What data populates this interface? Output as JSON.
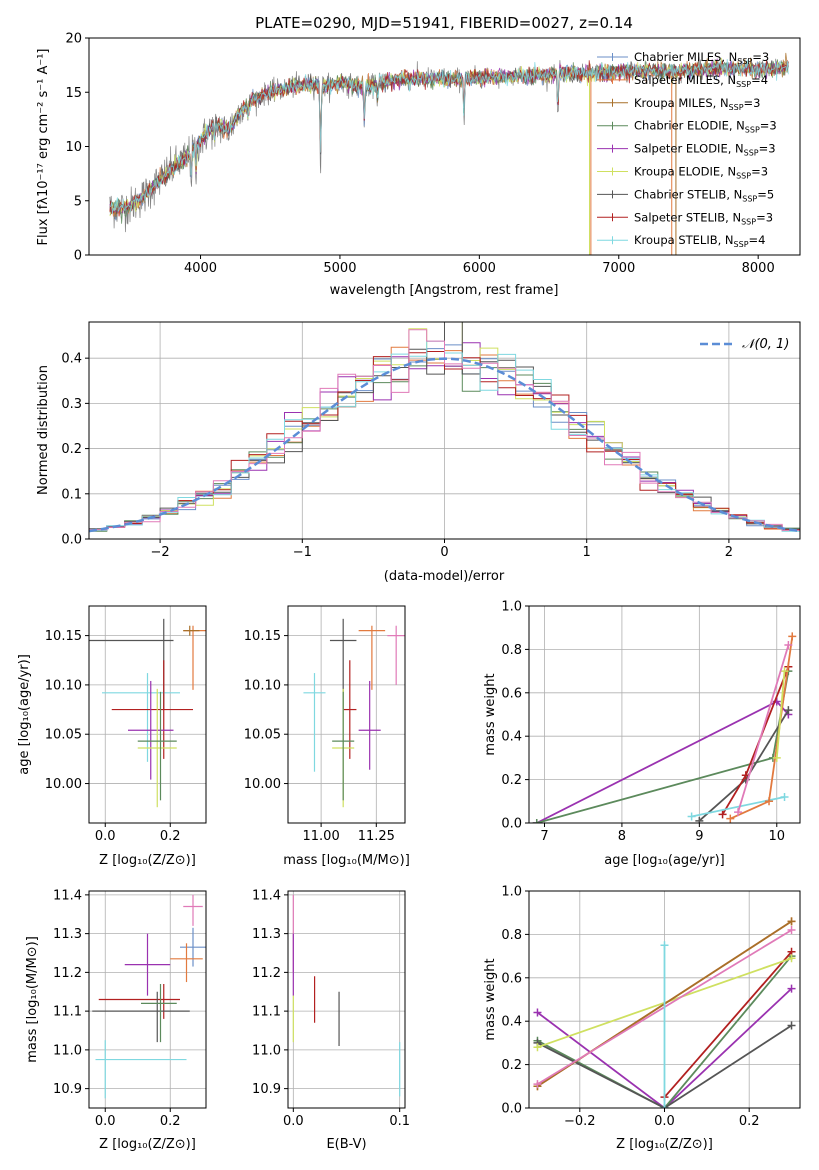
{
  "chart_data": [
    {
      "id": "spectrum",
      "type": "line",
      "title": "PLATE=0290, MJD=51941, FIBERID=0027, z=0.14",
      "xlabel": "wavelength [Angstrom, rest frame]",
      "ylabel": "Flux [fλ10⁻¹⁷ erg cm⁻² s⁻¹ A⁻¹]",
      "xlim": [
        3200,
        8300
      ],
      "ylim": [
        0,
        20
      ],
      "xticks": [
        4000,
        5000,
        6000,
        7000,
        8000
      ],
      "yticks": [
        0,
        5,
        10,
        15,
        20
      ],
      "grid": false,
      "legend_position": "top-right",
      "data_color": "#808080",
      "spectrum_shape": {
        "x": [
          3350,
          3500,
          3600,
          3700,
          3800,
          3900,
          4000,
          4100,
          4200,
          4300,
          4400,
          4500,
          4600,
          4700,
          4800,
          4900,
          5000,
          5100,
          5200,
          5300,
          5400,
          5500,
          5700,
          5900,
          6100,
          6300,
          6500,
          6600,
          6800,
          7000,
          7200,
          7400,
          7600,
          7800,
          8000,
          8200
        ],
        "y": [
          4.2,
          4.5,
          5.5,
          6.8,
          8,
          9,
          10.5,
          12,
          11.5,
          13.5,
          14.5,
          15,
          15.3,
          15.6,
          15.7,
          15.6,
          15.9,
          15.6,
          15.5,
          15.9,
          16.1,
          16.2,
          16.3,
          16.2,
          16.4,
          16.5,
          16.6,
          16.8,
          16.7,
          16.9,
          17.0,
          16.9,
          17.1,
          17.2,
          17.1,
          17.3
        ]
      },
      "series": [
        {
          "name": "Chabrier MILES, Nₛₛₚ=3",
          "label_main": "Chabrier MILES, N",
          "label_sub": "SSP",
          "label_tail": "=3",
          "color": "#6b8fc7"
        },
        {
          "name": "Salpeter MILES, Nₛₛₚ=4",
          "label_main": "Salpeter MILES, N",
          "label_sub": "SSP",
          "label_tail": "=4",
          "color": "#e27a3f"
        },
        {
          "name": "Kroupa MILES, Nₛₛₚ=3",
          "label_main": "Kroupa MILES, N",
          "label_sub": "SSP",
          "label_tail": "=3",
          "color": "#a8702a"
        },
        {
          "name": "Chabrier ELODIE, Nₛₛₚ=3",
          "label_main": "Chabrier ELODIE, N",
          "label_sub": "SSP",
          "label_tail": "=3",
          "color": "#5c8a5c"
        },
        {
          "name": "Salpeter ELODIE, Nₛₛₚ=3",
          "label_main": "Salpeter ELODIE, N",
          "label_sub": "SSP",
          "label_tail": "=3",
          "color": "#9a32b0"
        },
        {
          "name": "Kroupa ELODIE, Nₛₛₚ=3",
          "label_main": "Kroupa ELODIE, N",
          "label_sub": "SSP",
          "label_tail": "=3",
          "color": "#cfe060"
        },
        {
          "name": "Chabrier STELIB, Nₛₛₚ=5",
          "label_main": "Chabrier STELIB, N",
          "label_sub": "SSP",
          "label_tail": "=5",
          "color": "#555555"
        },
        {
          "name": "Salpeter STELIB, Nₛₛₚ=3",
          "label_main": "Salpeter STELIB, N",
          "label_sub": "SSP",
          "label_tail": "=3",
          "color": "#b22020"
        },
        {
          "name": "Kroupa STELIB, Nₛₛₚ=4",
          "label_main": "Kroupa STELIB, N",
          "label_sub": "SSP",
          "label_tail": "=4",
          "color": "#7fd8e0"
        }
      ]
    },
    {
      "id": "residuals",
      "type": "line",
      "xlabel": "(data-model)/error",
      "ylabel": "Normed distribution",
      "xlim": [
        -2.5,
        2.5
      ],
      "ylim": [
        0,
        0.48
      ],
      "xticks": [
        -2,
        -1,
        0,
        1,
        2
      ],
      "yticks": [
        0.0,
        0.1,
        0.2,
        0.3,
        0.4
      ],
      "grid": true,
      "legend_position": "top-right",
      "reference": {
        "name": "𝒩(0, 1)",
        "color": "#5b8dd6"
      },
      "bin_width": 0.125,
      "histogram_colors": [
        "#6b8fc7",
        "#e27a3f",
        "#5c8a5c",
        "#9a32b0",
        "#cfe060",
        "#555555",
        "#b22020",
        "#7fd8e0",
        "#e07ab8"
      ]
    },
    {
      "id": "age-vs-Z",
      "type": "scatter",
      "xlabel": "Z [log₁₀(Z/Z⊙)]",
      "ylabel": "age  [log₁₀(age/yr)]",
      "xlim": [
        -0.05,
        0.31
      ],
      "ylim": [
        9.96,
        10.18
      ],
      "xticks": [
        0.0,
        0.2
      ],
      "yticks": [
        10.0,
        10.05,
        10.1,
        10.15
      ],
      "grid": true,
      "points": [
        {
          "x": 0.18,
          "y": 10.145,
          "xerr": [
            0.23,
            0.03
          ],
          "yerr": [
            0.07,
            0.022
          ],
          "color": "#555555"
        },
        {
          "x": 0.27,
          "y": 10.155,
          "xerr": [
            0.03,
            0.04
          ],
          "yerr": [
            0.06,
            0.005
          ],
          "color": "#e27a3f"
        },
        {
          "x": 0.26,
          "y": 10.155,
          "xerr": [
            0.02,
            0.03
          ],
          "yerr": [
            0.005,
            0.005
          ],
          "color": "#a8702a"
        },
        {
          "x": 0.13,
          "y": 10.092,
          "xerr": [
            0.14,
            0.1
          ],
          "yerr": [
            0.07,
            0.02
          ],
          "color": "#7fd8e0"
        },
        {
          "x": 0.18,
          "y": 10.075,
          "xerr": [
            0.16,
            0.09
          ],
          "yerr": [
            0.05,
            0.05
          ],
          "color": "#b22020"
        },
        {
          "x": 0.14,
          "y": 10.054,
          "xerr": [
            0.07,
            0.07
          ],
          "yerr": [
            0.05,
            0.05
          ],
          "color": "#9a32b0"
        },
        {
          "x": 0.16,
          "y": 10.036,
          "xerr": [
            0.06,
            0.06
          ],
          "yerr": [
            0.06,
            0.06
          ],
          "color": "#cfe060"
        },
        {
          "x": 0.17,
          "y": 10.043,
          "xerr": [
            0.07,
            0.05
          ],
          "yerr": [
            0.06,
            0.05
          ],
          "color": "#5c8a5c"
        }
      ]
    },
    {
      "id": "age-vs-mass",
      "type": "scatter",
      "xlabel": "mass [log₁₀(M/M⊙)]",
      "xlim": [
        10.85,
        11.38
      ],
      "ylim": [
        9.96,
        10.18
      ],
      "xticks": [
        11.0,
        11.25
      ],
      "yticks": [
        10.0,
        10.05,
        10.1,
        10.15
      ],
      "grid": true,
      "points": [
        {
          "x": 11.1,
          "y": 10.145,
          "xerr": [
            0.06,
            0.06
          ],
          "yerr": [
            0.07,
            0.022
          ],
          "color": "#555555"
        },
        {
          "x": 11.23,
          "y": 10.155,
          "xerr": [
            0.06,
            0.06
          ],
          "yerr": [
            0.06,
            0.005
          ],
          "color": "#e27a3f"
        },
        {
          "x": 11.34,
          "y": 10.15,
          "xerr": [
            0.04,
            0.04
          ],
          "yerr": [
            0.05,
            0.01
          ],
          "color": "#e07ab8"
        },
        {
          "x": 10.97,
          "y": 10.092,
          "xerr": [
            0.05,
            0.05
          ],
          "yerr": [
            0.08,
            0.02
          ],
          "color": "#7fd8e0"
        },
        {
          "x": 11.13,
          "y": 10.075,
          "xerr": [
            0.03,
            0.03
          ],
          "yerr": [
            0.05,
            0.05
          ],
          "color": "#b22020"
        },
        {
          "x": 11.22,
          "y": 10.054,
          "xerr": [
            0.05,
            0.05
          ],
          "yerr": [
            0.04,
            0.05
          ],
          "color": "#9a32b0"
        },
        {
          "x": 11.1,
          "y": 10.036,
          "xerr": [
            0.05,
            0.05
          ],
          "yerr": [
            0.06,
            0.06
          ],
          "color": "#cfe060"
        },
        {
          "x": 11.1,
          "y": 10.043,
          "xerr": [
            0.05,
            0.05
          ],
          "yerr": [
            0.06,
            0.05
          ],
          "color": "#5c8a5c"
        }
      ]
    },
    {
      "id": "weight-vs-age",
      "type": "line",
      "xlabel": "age  [log₁₀(age/yr)]",
      "ylabel": "mass weight",
      "xlim": [
        6.8,
        10.3
      ],
      "ylim": [
        0,
        1.0
      ],
      "xticks": [
        7,
        8,
        9,
        10
      ],
      "yticks": [
        0.0,
        0.2,
        0.4,
        0.6,
        0.8,
        1.0
      ],
      "grid": true,
      "series": [
        {
          "color": "#9a32b0",
          "x": [
            6.9,
            10.0,
            10.15
          ],
          "y": [
            0.0,
            0.56,
            0.5
          ]
        },
        {
          "color": "#5c8a5c",
          "x": [
            6.9,
            9.95,
            10.15
          ],
          "y": [
            0.0,
            0.3,
            0.7
          ]
        },
        {
          "color": "#555555",
          "x": [
            9.0,
            9.6,
            10.15
          ],
          "y": [
            0.01,
            0.2,
            0.52
          ]
        },
        {
          "color": "#b22020",
          "x": [
            9.3,
            9.6,
            10.15
          ],
          "y": [
            0.04,
            0.22,
            0.72
          ]
        },
        {
          "color": "#7fd8e0",
          "x": [
            8.9,
            10.1
          ],
          "y": [
            0.03,
            0.12
          ]
        },
        {
          "color": "#e27a3f",
          "x": [
            9.4,
            9.9,
            10.2
          ],
          "y": [
            0.02,
            0.1,
            0.86
          ]
        },
        {
          "color": "#cfe060",
          "x": [
            10.0,
            10.1
          ],
          "y": [
            0.3,
            0.7
          ]
        },
        {
          "color": "#e07ab8",
          "x": [
            9.5,
            10.15
          ],
          "y": [
            0.05,
            0.82
          ]
        }
      ]
    },
    {
      "id": "mass-vs-Z",
      "type": "scatter",
      "xlabel": "Z [log₁₀(Z/Z⊙)]",
      "ylabel": "mass [log₁₀(M/M⊙)]",
      "xlim": [
        -0.05,
        0.31
      ],
      "ylim": [
        10.85,
        11.41
      ],
      "xticks": [
        0.0,
        0.2
      ],
      "yticks": [
        10.9,
        11.0,
        11.1,
        11.2,
        11.3,
        11.4
      ],
      "grid": true,
      "points": [
        {
          "x": 0.27,
          "y": 11.37,
          "xerr": [
            0.03,
            0.03
          ],
          "yerr": [
            0.05,
            0.03
          ],
          "color": "#e07ab8"
        },
        {
          "x": 0.27,
          "y": 11.265,
          "xerr": [
            0.04,
            0.04
          ],
          "yerr": [
            0.05,
            0.05
          ],
          "color": "#6b8fc7"
        },
        {
          "x": 0.25,
          "y": 11.235,
          "xerr": [
            0.05,
            0.05
          ],
          "yerr": [
            0.06,
            0.04
          ],
          "color": "#e27a3f"
        },
        {
          "x": 0.13,
          "y": 11.22,
          "xerr": [
            0.07,
            0.07
          ],
          "yerr": [
            0.08,
            0.08
          ],
          "color": "#9a32b0"
        },
        {
          "x": 0.18,
          "y": 11.13,
          "xerr": [
            0.2,
            0.05
          ],
          "yerr": [
            0.05,
            0.04
          ],
          "color": "#b22020"
        },
        {
          "x": 0.16,
          "y": 11.1,
          "xerr": [
            0.2,
            0.1
          ],
          "yerr": [
            0.08,
            0.05
          ],
          "color": "#555555"
        },
        {
          "x": 0.17,
          "y": 11.12,
          "xerr": [
            0.06,
            0.05
          ],
          "yerr": [
            0.1,
            0.05
          ],
          "color": "#5c8a5c"
        },
        {
          "x": 0.0,
          "y": 10.975,
          "xerr": [
            0.03,
            0.25
          ],
          "yerr": [
            0.1,
            0.05
          ],
          "color": "#7fd8e0"
        }
      ]
    },
    {
      "id": "mass-vs-EBV",
      "type": "scatter",
      "xlabel": "E(B-V)",
      "xlim": [
        -0.005,
        0.105
      ],
      "ylim": [
        10.85,
        11.41
      ],
      "xticks": [
        0.0,
        0.1
      ],
      "yticks": [
        10.9,
        11.0,
        11.1,
        11.2,
        11.3,
        11.4
      ],
      "grid": true,
      "points": [
        {
          "x": 0.0,
          "y": 11.3,
          "xerr": [
            0,
            0
          ],
          "yerr": [
            0.1,
            0.1
          ],
          "color": "#e07ab8"
        },
        {
          "x": 0.0,
          "y": 11.22,
          "xerr": [
            0,
            0
          ],
          "yerr": [
            0.08,
            0.08
          ],
          "color": "#9a32b0"
        },
        {
          "x": 0.0,
          "y": 11.08,
          "xerr": [
            0,
            0
          ],
          "yerr": [
            0.06,
            0.06
          ],
          "color": "#cfe060"
        },
        {
          "x": 0.02,
          "y": 11.13,
          "xerr": [
            0,
            0
          ],
          "yerr": [
            0.06,
            0.06
          ],
          "color": "#b22020"
        },
        {
          "x": 0.043,
          "y": 11.08,
          "xerr": [
            0,
            0
          ],
          "yerr": [
            0.07,
            0.07
          ],
          "color": "#555555"
        },
        {
          "x": 0.1,
          "y": 10.95,
          "xerr": [
            0,
            0
          ],
          "yerr": [
            0.07,
            0.07
          ],
          "color": "#7fd8e0"
        }
      ]
    },
    {
      "id": "weight-vs-Z",
      "type": "line",
      "xlabel": "Z [log₁₀(Z/Z⊙)]",
      "ylabel": "mass weight",
      "xlim": [
        -0.32,
        0.32
      ],
      "ylim": [
        0,
        1.0
      ],
      "xticks": [
        -0.2,
        0.0,
        0.2
      ],
      "yticks": [
        0.0,
        0.2,
        0.4,
        0.6,
        0.8,
        1.0
      ],
      "grid": true,
      "series": [
        {
          "color": "#9a32b0",
          "x": [
            -0.3,
            0.0,
            0.3
          ],
          "y": [
            0.44,
            0.0,
            0.55
          ]
        },
        {
          "color": "#5c8a5c",
          "x": [
            -0.3,
            0.0,
            0.3
          ],
          "y": [
            0.31,
            0.0,
            0.7
          ]
        },
        {
          "color": "#555555",
          "x": [
            -0.3,
            0.0,
            0.3
          ],
          "y": [
            0.3,
            0.0,
            0.38
          ]
        },
        {
          "color": "#b22020",
          "x": [
            0.0,
            0.3
          ],
          "y": [
            0.05,
            0.72
          ]
        },
        {
          "color": "#cfe060",
          "x": [
            -0.3,
            0.3
          ],
          "y": [
            0.28,
            0.69
          ]
        },
        {
          "color": "#e27a3f",
          "x": [
            -0.3,
            0.3
          ],
          "y": [
            0.1,
            0.86
          ]
        },
        {
          "color": "#a8702a",
          "x": [
            -0.3,
            0.3
          ],
          "y": [
            0.1,
            0.86
          ]
        },
        {
          "color": "#e07ab8",
          "x": [
            -0.3,
            0.3
          ],
          "y": [
            0.11,
            0.82
          ]
        },
        {
          "color": "#7fd8e0",
          "x": [
            0.0,
            0.0
          ],
          "y": [
            0.0,
            0.75
          ]
        }
      ]
    }
  ]
}
